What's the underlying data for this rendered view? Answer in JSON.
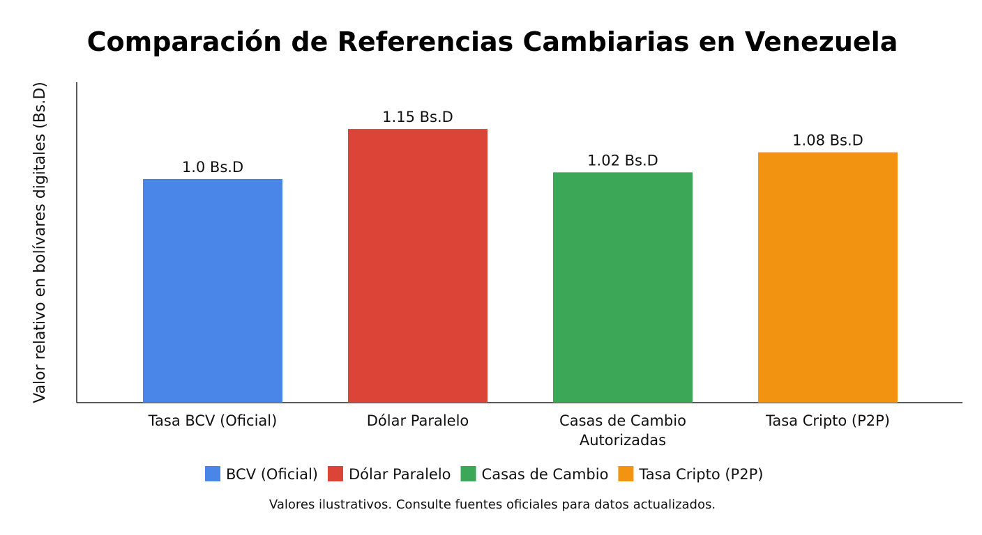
{
  "chart_data": {
    "type": "bar",
    "title": "Comparación de Referencias Cambiarias en Venezuela",
    "xlabel": "",
    "ylabel": "Valor relativo en bolívares digitales (Bs.D)",
    "ylim": [
      0.33,
      1.29
    ],
    "grid": false,
    "y_ticks_shown": false,
    "categories": [
      [
        "Tasa BCV (Oficial)"
      ],
      [
        "Dólar Paralelo"
      ],
      [
        "Casas de Cambio",
        "Autorizadas"
      ],
      [
        "Tasa Cripto (P2P)"
      ]
    ],
    "values": [
      1.0,
      1.15,
      1.02,
      1.08
    ],
    "data_labels": [
      "1.0 Bs.D",
      "1.15 Bs.D",
      "1.02 Bs.D",
      "1.08 Bs.D"
    ],
    "colors": [
      "#4a86e8",
      "#db4437",
      "#3ba757",
      "#f39312"
    ],
    "legend_position": "bottom",
    "legend": [
      "BCV (Oficial)",
      "Dólar Paralelo",
      "Casas de Cambio",
      "Tasa Cripto (P2P)"
    ],
    "footnote": "Valores ilustrativos. Consulte fuentes oficiales para datos actualizados."
  }
}
